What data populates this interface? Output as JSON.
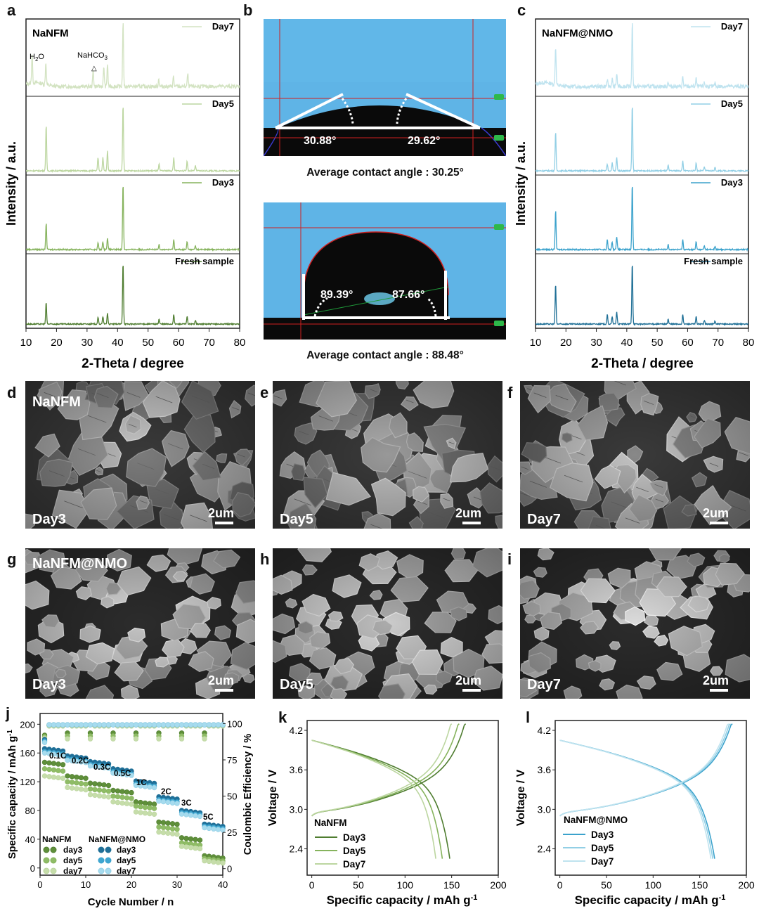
{
  "panel_letters": [
    "a",
    "b",
    "c",
    "d",
    "e",
    "f",
    "g",
    "h",
    "i",
    "j",
    "k",
    "l"
  ],
  "colors": {
    "nanfm_day7": "#d3e3c2",
    "nanfm_day5": "#bcd6a0",
    "nanfm_day3": "#86b35d",
    "nanfm_fresh": "#4f7d30",
    "nmo_day7": "#bfe3ef",
    "nmo_day5": "#92cfe5",
    "nmo_day3": "#3ba2cc",
    "nmo_fresh": "#1e6f96",
    "sky": "#5fb4e6",
    "drop": "#0c0c0c"
  },
  "panel_a": {
    "title": "NaNFM",
    "ylabel": "Intensity / a.u.",
    "xlabel": "2-Theta / degree",
    "annotations": {
      "h2o": "H2O",
      "nahco3": "NaHCO3",
      "triangle": "△"
    },
    "xticks": [
      "10",
      "20",
      "30",
      "40",
      "50",
      "60",
      "70",
      "80"
    ]
  },
  "panel_b": {
    "top": {
      "angle_left": "30.88°",
      "angle_right": "29.62°",
      "caption": "Average contact angle : 30.25°"
    },
    "bottom": {
      "angle_left": "89.39°",
      "angle_right": "87.66°",
      "caption": "Average contact angle : 88.48°"
    }
  },
  "panel_c": {
    "title": "NaNFM@NMO",
    "ylabel": "Intensity / a.u.",
    "xlabel": "2-Theta / degree",
    "xticks": [
      "10",
      "20",
      "30",
      "40",
      "50",
      "60",
      "70",
      "80"
    ]
  },
  "sem": {
    "d": {
      "label_tl": "NaNFM",
      "label_bl": "Day3",
      "scale": "2um"
    },
    "e": {
      "label_bl": "Day5",
      "scale": "2um"
    },
    "f": {
      "label_bl": "Day7",
      "scale": "2um"
    },
    "g": {
      "label_tl": "NaNFM@NMO",
      "label_bl": "Day3",
      "scale": "2um"
    },
    "h": {
      "label_bl": "Day5",
      "scale": "2um"
    },
    "i": {
      "label_bl": "Day7",
      "scale": "2um"
    }
  },
  "panel_j": {
    "xlabel": "Cycle Number / n",
    "ylabel_left": "Specific capacity / mAh g-1",
    "ylabel_right": "Coulombic Efficiency / %",
    "yticks_left": [
      "0",
      "40",
      "80",
      "120",
      "160",
      "200"
    ],
    "yticks_right": [
      "0",
      "25",
      "50",
      "75",
      "100"
    ],
    "xticks": [
      "0",
      "10",
      "20",
      "30",
      "40"
    ],
    "rates": [
      "0.1C",
      "0.2C",
      "0.3C",
      "0.5C",
      "1C",
      "2C",
      "3C",
      "5C"
    ],
    "legend_group_nanfm": "NaNFM",
    "legend_group_nmo": "NaNFM@NMO",
    "legend_items": [
      "day3",
      "day5",
      "day7"
    ]
  },
  "panel_k": {
    "title": "NaNFM",
    "xlabel": "Specific capacity / mAh g-1",
    "ylabel": "Voltage / V",
    "yticks": [
      "2.4",
      "3.0",
      "3.6",
      "4.2"
    ],
    "xticks": [
      "0",
      "50",
      "100",
      "150",
      "200"
    ],
    "legend": [
      "Day3",
      "Day5",
      "Day7"
    ]
  },
  "panel_l": {
    "title": "NaNFM@NMO",
    "xlabel": "Specific capacity / mAh g-1",
    "ylabel": "Voltage / V",
    "yticks": [
      "2.4",
      "3.0",
      "3.6",
      "4.2"
    ],
    "xticks": [
      "0",
      "50",
      "100",
      "150",
      "200"
    ],
    "legend": [
      "Day3",
      "Day5",
      "Day7"
    ]
  },
  "chart_data": [
    {
      "type": "line",
      "panel": "a",
      "xlabel": "2-Theta / degree",
      "ylabel": "Intensity / a.u.",
      "xlim": [
        10,
        80
      ],
      "series": [
        {
          "name": "Day7",
          "peaks": [
            [
              12.0,
              0.45
            ],
            [
              16.5,
              0.35
            ],
            [
              32.0,
              0.25
            ],
            [
              35.5,
              0.3
            ],
            [
              36.7,
              0.35
            ],
            [
              41.8,
              1.0
            ],
            [
              53.5,
              0.12
            ],
            [
              58.3,
              0.15
            ],
            [
              63.0,
              0.2
            ]
          ]
        },
        {
          "name": "Day5",
          "peaks": [
            [
              16.6,
              0.7
            ],
            [
              33.6,
              0.2
            ],
            [
              35.2,
              0.2
            ],
            [
              36.7,
              0.3
            ],
            [
              41.8,
              1.0
            ],
            [
              53.6,
              0.1
            ],
            [
              58.4,
              0.2
            ],
            [
              62.8,
              0.15
            ],
            [
              65.5,
              0.08
            ]
          ]
        },
        {
          "name": "Day3",
          "peaks": [
            [
              16.6,
              0.4
            ],
            [
              33.6,
              0.1
            ],
            [
              35.2,
              0.12
            ],
            [
              36.7,
              0.18
            ],
            [
              41.8,
              1.0
            ],
            [
              53.6,
              0.08
            ],
            [
              58.4,
              0.15
            ],
            [
              62.8,
              0.12
            ],
            [
              65.5,
              0.06
            ]
          ]
        },
        {
          "name": "Fresh sample",
          "peaks": [
            [
              16.6,
              0.35
            ],
            [
              33.6,
              0.1
            ],
            [
              35.2,
              0.12
            ],
            [
              36.7,
              0.18
            ],
            [
              41.8,
              1.0
            ],
            [
              53.6,
              0.08
            ],
            [
              58.4,
              0.15
            ],
            [
              62.8,
              0.12
            ],
            [
              65.5,
              0.06
            ]
          ]
        }
      ]
    },
    {
      "type": "line",
      "panel": "c",
      "xlabel": "2-Theta / degree",
      "ylabel": "Intensity / a.u.",
      "xlim": [
        10,
        80
      ],
      "series": [
        {
          "name": "Day7",
          "peaks": [
            [
              16.6,
              0.6
            ],
            [
              33.6,
              0.1
            ],
            [
              35.2,
              0.12
            ],
            [
              36.7,
              0.2
            ],
            [
              41.8,
              1.0
            ],
            [
              53.6,
              0.08
            ],
            [
              58.4,
              0.15
            ],
            [
              62.8,
              0.12
            ],
            [
              65.5,
              0.06
            ],
            [
              69.0,
              0.05
            ]
          ]
        },
        {
          "name": "Day5",
          "peaks": [
            [
              16.6,
              0.6
            ],
            [
              33.6,
              0.1
            ],
            [
              35.2,
              0.12
            ],
            [
              36.7,
              0.2
            ],
            [
              41.8,
              1.0
            ],
            [
              53.6,
              0.08
            ],
            [
              58.4,
              0.15
            ],
            [
              62.8,
              0.12
            ],
            [
              65.5,
              0.06
            ],
            [
              69.0,
              0.05
            ]
          ]
        },
        {
          "name": "Day3",
          "peaks": [
            [
              16.6,
              0.6
            ],
            [
              33.6,
              0.15
            ],
            [
              35.2,
              0.12
            ],
            [
              36.7,
              0.2
            ],
            [
              41.8,
              1.0
            ],
            [
              53.6,
              0.08
            ],
            [
              58.4,
              0.15
            ],
            [
              62.8,
              0.12
            ],
            [
              65.5,
              0.06
            ],
            [
              69.0,
              0.05
            ]
          ]
        },
        {
          "name": "Fresh sample",
          "peaks": [
            [
              16.6,
              0.65
            ],
            [
              33.6,
              0.15
            ],
            [
              35.2,
              0.12
            ],
            [
              36.7,
              0.2
            ],
            [
              41.8,
              1.0
            ],
            [
              53.6,
              0.08
            ],
            [
              58.4,
              0.15
            ],
            [
              62.8,
              0.12
            ],
            [
              65.5,
              0.06
            ],
            [
              69.0,
              0.05
            ]
          ]
        }
      ]
    },
    {
      "type": "scatter",
      "panel": "j",
      "xlabel": "Cycle Number / n",
      "ylabel": "Specific capacity / mAh g-1",
      "y2label": "Coulombic Efficiency / %",
      "xlim": [
        0,
        40
      ],
      "ylim": [
        -10,
        215
      ],
      "y2lim": [
        -4.5,
        107
      ],
      "rate_steps": [
        {
          "rate": "0.1C",
          "start": 1,
          "end": 5
        },
        {
          "rate": "0.2C",
          "start": 6,
          "end": 10
        },
        {
          "rate": "0.3C",
          "start": 11,
          "end": 15
        },
        {
          "rate": "0.5C",
          "start": 16,
          "end": 20
        },
        {
          "rate": "1C",
          "start": 21,
          "end": 25
        },
        {
          "rate": "2C",
          "start": 26,
          "end": 30
        },
        {
          "rate": "3C",
          "start": 31,
          "end": 35
        },
        {
          "rate": "5C",
          "start": 36,
          "end": 40
        }
      ],
      "series": [
        {
          "name": "NaNFM day3",
          "capacity_steps": [
            147,
            128,
            118,
            108,
            92,
            64,
            42,
            17
          ]
        },
        {
          "name": "NaNFM day5",
          "capacity_steps": [
            138,
            120,
            110,
            100,
            86,
            57,
            35,
            13
          ]
        },
        {
          "name": "NaNFM day7",
          "capacity_steps": [
            128,
            112,
            102,
            92,
            78,
            50,
            30,
            10
          ]
        },
        {
          "name": "NaNFM@NMO day3",
          "capacity_steps": [
            166,
            156,
            148,
            138,
            121,
            99,
            80,
            61
          ]
        },
        {
          "name": "NaNFM@NMO day5",
          "capacity_steps": [
            162,
            152,
            144,
            134,
            117,
            95,
            77,
            58
          ]
        },
        {
          "name": "NaNFM@NMO day7",
          "capacity_steps": [
            160,
            150,
            142,
            132,
            115,
            93,
            75,
            56
          ]
        }
      ]
    },
    {
      "type": "line",
      "panel": "k",
      "xlabel": "Specific capacity / mAh g-1",
      "ylabel": "Voltage / V",
      "xlim": [
        -5,
        200
      ],
      "ylim": [
        2.0,
        4.35
      ],
      "series": [
        {
          "name": "Day3",
          "charge_end": 165,
          "discharge_end": 148
        },
        {
          "name": "Day5",
          "charge_end": 158,
          "discharge_end": 140
        },
        {
          "name": "Day7",
          "charge_end": 150,
          "discharge_end": 133
        }
      ]
    },
    {
      "type": "line",
      "panel": "l",
      "xlabel": "Specific capacity / mAh g-1",
      "ylabel": "Voltage / V",
      "xlim": [
        -5,
        200
      ],
      "ylim": [
        2.0,
        4.35
      ],
      "series": [
        {
          "name": "Day3",
          "charge_end": 185,
          "discharge_end": 166
        },
        {
          "name": "Day5",
          "charge_end": 183,
          "discharge_end": 164
        },
        {
          "name": "Day7",
          "charge_end": 181,
          "discharge_end": 162
        }
      ]
    }
  ]
}
